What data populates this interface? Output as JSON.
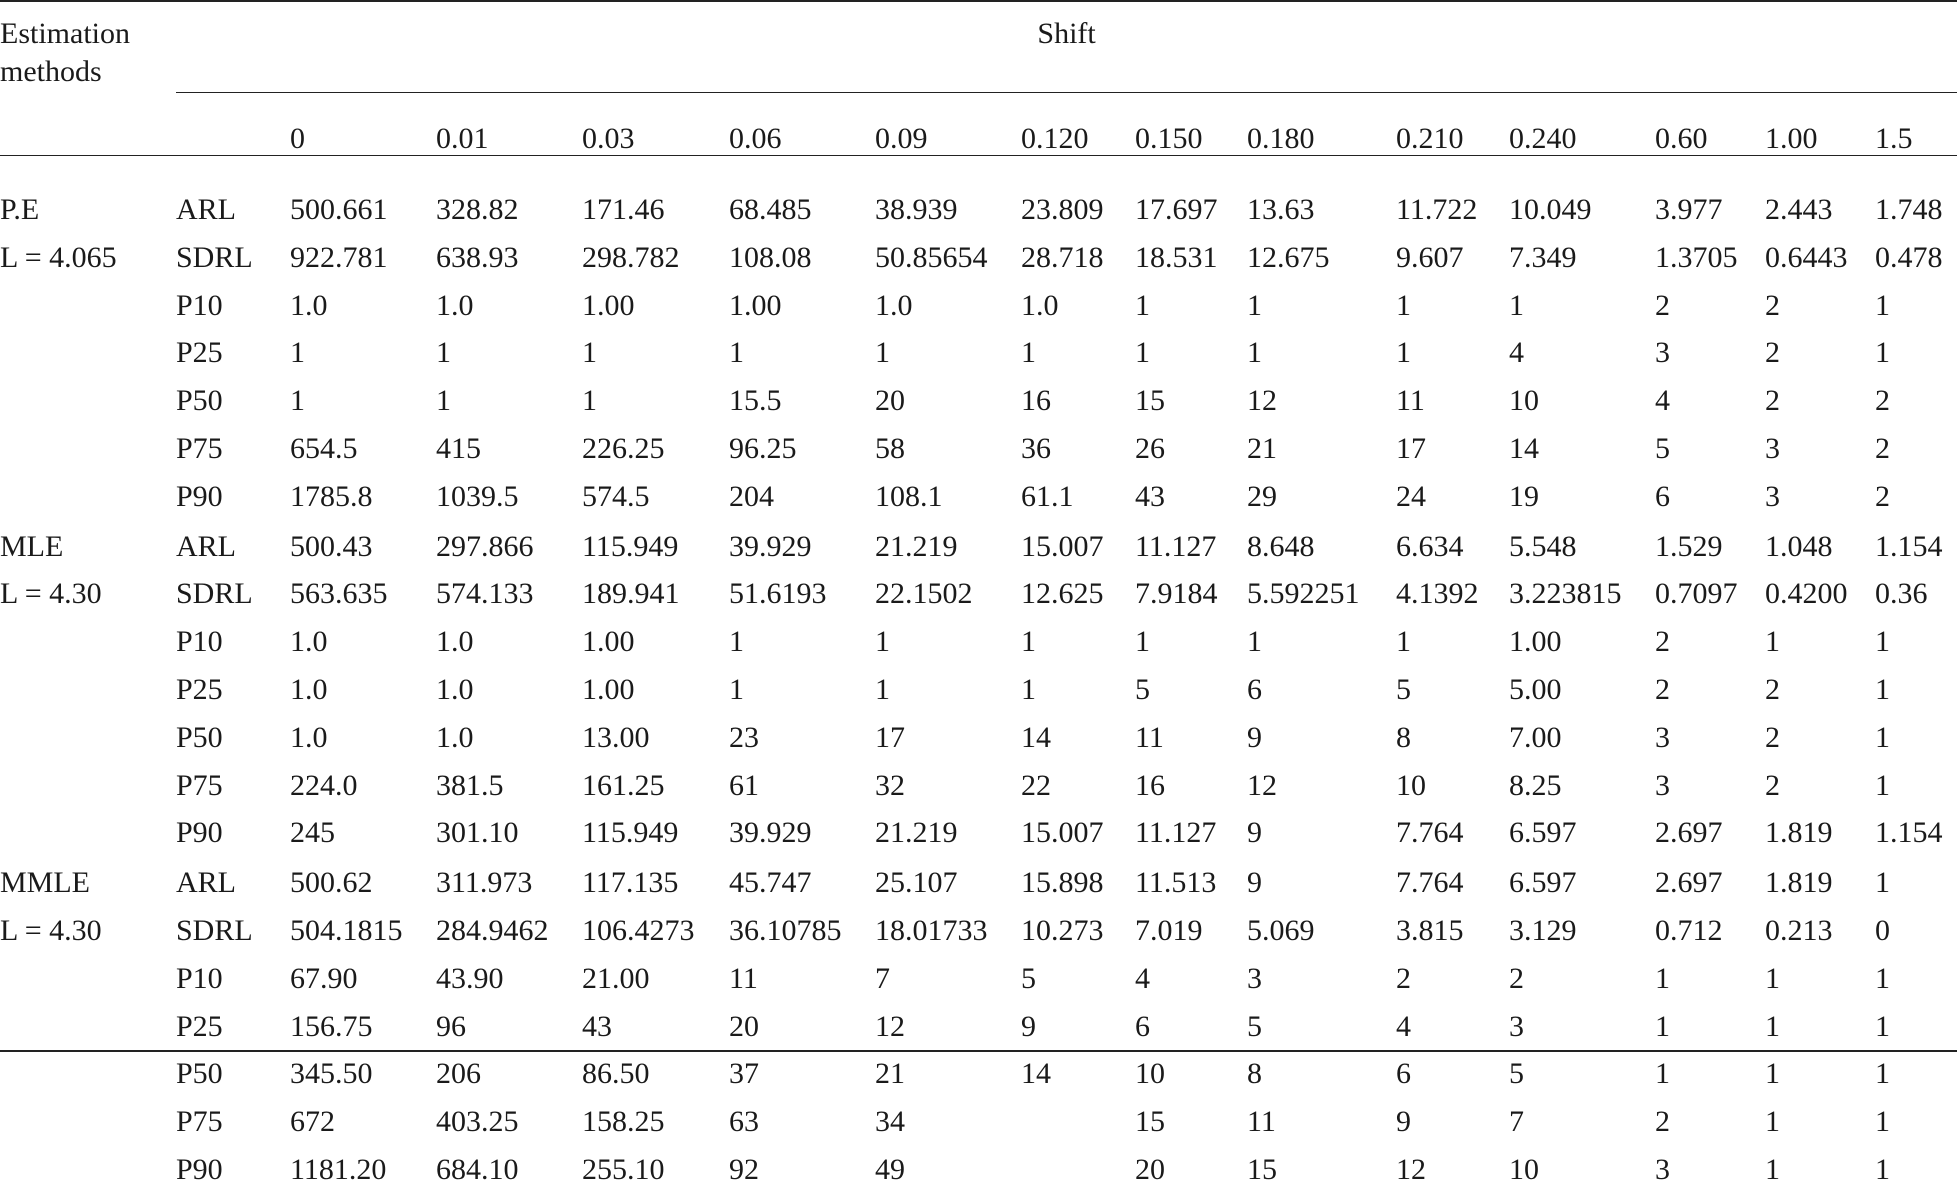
{
  "table": {
    "method_header": [
      "Estimation",
      "methods"
    ],
    "shift_header": "Shift",
    "shifts": [
      "0",
      "0.01",
      "0.03",
      "0.06",
      "0.09",
      "0.120",
      "0.150",
      "0.180",
      "0.210",
      "0.240",
      "0.60",
      "1.00",
      "1.5"
    ],
    "groups": [
      {
        "method": "P.E",
        "limit": "L = 4.065",
        "rows": [
          {
            "stat": "ARL",
            "values": [
              "500.661",
              "328.82",
              "171.46",
              "68.485",
              "38.939",
              "23.809",
              "17.697",
              "13.63",
              "11.722",
              "10.049",
              "3.977",
              "2.443",
              "1.748"
            ]
          },
          {
            "stat": "SDRL",
            "values": [
              "922.781",
              "638.93",
              "298.782",
              "108.08",
              "50.85654",
              "28.718",
              "18.531",
              "12.675",
              "9.607",
              "7.349",
              "1.3705",
              "0.6443",
              "0.478"
            ]
          },
          {
            "stat": "P10",
            "values": [
              "1.0",
              "1.0",
              "1.00",
              "1.00",
              "1.0",
              "1.0",
              "1",
              "1",
              "1",
              "1",
              "2",
              "2",
              "1"
            ]
          },
          {
            "stat": "P25",
            "values": [
              "1",
              "1",
              "1",
              "1",
              "1",
              "1",
              "1",
              "1",
              "1",
              "4",
              "3",
              "2",
              "1"
            ]
          },
          {
            "stat": "P50",
            "values": [
              "1",
              "1",
              "1",
              "15.5",
              "20",
              "16",
              "15",
              "12",
              "11",
              "10",
              "4",
              "2",
              "2"
            ]
          },
          {
            "stat": "P75",
            "values": [
              "654.5",
              "415",
              "226.25",
              "96.25",
              "58",
              "36",
              "26",
              "21",
              "17",
              "14",
              "5",
              "3",
              "2"
            ]
          },
          {
            "stat": "P90",
            "values": [
              "1785.8",
              "1039.5",
              "574.5",
              "204",
              "108.1",
              "61.1",
              "43",
              "29",
              "24",
              "19",
              "6",
              "3",
              "2"
            ]
          }
        ]
      },
      {
        "method": "MLE",
        "limit": "L = 4.30",
        "rows": [
          {
            "stat": "ARL",
            "values": [
              "500.43",
              "297.866",
              "115.949",
              "39.929",
              "21.219",
              "15.007",
              "11.127",
              "8.648",
              "6.634",
              "5.548",
              "1.529",
              "1.048",
              "1.154"
            ]
          },
          {
            "stat": "SDRL",
            "values": [
              "563.635",
              "574.133",
              "189.941",
              "51.6193",
              "22.1502",
              "12.625",
              "7.9184",
              "5.592251",
              "4.1392",
              "3.223815",
              "0.7097",
              "0.4200",
              "0.36"
            ]
          },
          {
            "stat": "P10",
            "values": [
              "1.0",
              "1.0",
              "1.00",
              "1",
              "1",
              "1",
              "1",
              "1",
              "1",
              "1.00",
              "2",
              "1",
              "1"
            ]
          },
          {
            "stat": "P25",
            "values": [
              "1.0",
              "1.0",
              "1.00",
              "1",
              "1",
              "1",
              "5",
              "6",
              "5",
              "5.00",
              "2",
              "2",
              "1"
            ]
          },
          {
            "stat": "P50",
            "values": [
              "1.0",
              "1.0",
              "13.00",
              "23",
              "17",
              "14",
              "11",
              "9",
              "8",
              "7.00",
              "3",
              "2",
              "1"
            ]
          },
          {
            "stat": "P75",
            "values": [
              "224.0",
              "381.5",
              "161.25",
              "61",
              "32",
              "22",
              "16",
              "12",
              "10",
              "8.25",
              "3",
              "2",
              "1"
            ]
          },
          {
            "stat": "P90",
            "values": [
              "245",
              "301.10",
              "115.949",
              "39.929",
              "21.219",
              "15.007",
              "11.127",
              "9",
              "7.764",
              "6.597",
              "2.697",
              "1.819",
              "1.154"
            ]
          }
        ]
      },
      {
        "method": "MMLE",
        "limit": "L = 4.30",
        "rows": [
          {
            "stat": "ARL",
            "values": [
              "500.62",
              "311.973",
              "117.135",
              "45.747",
              "25.107",
              "15.898",
              "11.513",
              "9",
              "7.764",
              "6.597",
              "2.697",
              "1.819",
              "1"
            ]
          },
          {
            "stat": "SDRL",
            "values": [
              "504.1815",
              "284.9462",
              "106.4273",
              "36.10785",
              "18.01733",
              "10.273",
              "7.019",
              "5.069",
              "3.815",
              "3.129",
              "0.712",
              "0.213",
              "0"
            ]
          },
          {
            "stat": "P10",
            "values": [
              "67.90",
              "43.90",
              "21.00",
              "11",
              "7",
              "5",
              "4",
              "3",
              "2",
              "2",
              "1",
              "1",
              "1"
            ]
          },
          {
            "stat": "P25",
            "values": [
              "156.75",
              "96",
              "43",
              "20",
              "12",
              "9",
              "6",
              "5",
              "4",
              "3",
              "1",
              "1",
              "1"
            ]
          },
          {
            "stat": "P50",
            "values": [
              "345.50",
              "206",
              "86.50",
              "37",
              "21",
              "14",
              "10",
              "8",
              "6",
              "5",
              "1",
              "1",
              "1"
            ]
          },
          {
            "stat": "P75",
            "values": [
              "672",
              "403.25",
              "158.25",
              "63",
              "34",
              "",
              "15",
              "11",
              "9",
              "7",
              "2",
              "1",
              "1"
            ]
          },
          {
            "stat": "P90",
            "values": [
              "1181.20",
              "684.10",
              "255.10",
              "92",
              "49",
              "",
              "20",
              "15",
              "12",
              "10",
              "3",
              "1",
              "1"
            ]
          }
        ]
      }
    ]
  }
}
